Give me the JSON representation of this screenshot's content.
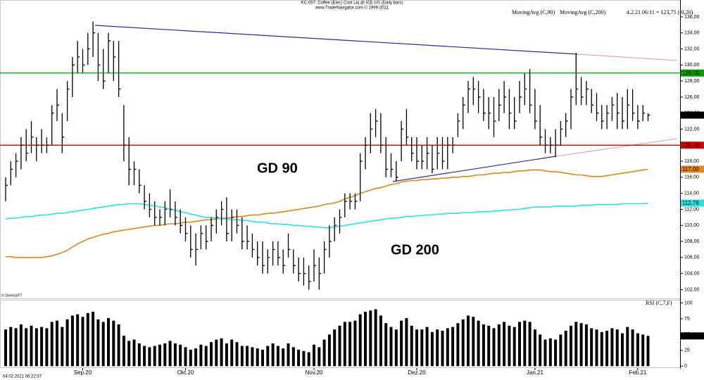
{
  "chart_data": [
    {
      "type": "ohlc",
      "title": "KC-057:  Coffee (Elec) Cont Liq @ ICE-US  (Daily bars)",
      "subtitle": "www.TradeNavigator.com © 1999-2021",
      "quote": "4.2.21 06:11 = 123,75 (-0,20)",
      "credit": "© GenesisFT",
      "timestamp": "04.02.2021 06:22:37",
      "color": "#000000",
      "categories": [
        null,
        null,
        null,
        null,
        null,
        null,
        null,
        null,
        null,
        null,
        null,
        null,
        null,
        null,
        null,
        "Sep.20",
        null,
        null,
        null,
        null,
        null,
        null,
        null,
        null,
        null,
        null,
        null,
        null,
        null,
        null,
        null,
        null,
        null,
        null,
        null,
        "Okt.20",
        null,
        null,
        null,
        null,
        null,
        null,
        null,
        null,
        null,
        null,
        null,
        null,
        null,
        null,
        null,
        null,
        null,
        null,
        null,
        null,
        null,
        null,
        null,
        null,
        "Nov.20",
        null,
        null,
        null,
        null,
        null,
        null,
        null,
        null,
        null,
        null,
        null,
        null,
        null,
        null,
        null,
        null,
        null,
        null,
        null,
        "Dez.20",
        null,
        null,
        null,
        null,
        null,
        null,
        null,
        null,
        null,
        null,
        null,
        null,
        null,
        null,
        null,
        null,
        null,
        null,
        null,
        null,
        null,
        null,
        "Jan.21",
        null,
        null,
        null,
        null,
        null,
        null,
        null,
        null,
        null,
        null,
        null,
        null,
        null,
        null,
        null,
        null,
        null,
        null,
        null,
        "Feb.21",
        null,
        null
      ],
      "high": [
        116,
        118,
        119,
        121,
        122,
        123,
        121,
        122,
        121,
        125,
        127,
        124,
        128,
        131,
        133,
        132,
        134,
        135.4,
        134,
        132,
        134,
        133,
        133,
        125,
        121,
        118,
        117,
        115,
        114,
        113,
        112,
        113,
        114.5,
        113,
        112,
        111,
        110,
        109,
        110,
        110,
        111,
        112,
        113,
        113.5,
        112,
        112,
        111,
        110,
        109,
        108,
        108,
        107,
        108,
        108,
        107,
        109,
        107,
        106,
        106,
        105,
        107,
        106,
        108,
        110,
        111,
        112,
        114,
        114,
        114,
        119,
        121,
        124,
        124.5,
        124,
        121,
        119,
        118,
        123,
        124.5,
        121,
        121,
        120,
        121,
        120,
        121,
        121,
        121,
        121,
        124,
        126,
        128,
        128.5,
        128,
        127,
        126,
        126,
        127,
        128,
        127,
        126,
        128,
        129,
        129.5,
        127,
        125,
        122,
        121,
        122,
        123,
        124,
        127,
        131.5,
        128.5,
        128,
        127,
        126.5,
        125,
        125,
        126,
        126.5,
        126,
        127,
        127,
        125,
        125,
        124
      ],
      "low": [
        113,
        115,
        116,
        117,
        118,
        119,
        118,
        119,
        119,
        120,
        123,
        119,
        123,
        126,
        129,
        129,
        130,
        131,
        128,
        127,
        129,
        128,
        126,
        118,
        115,
        115,
        114,
        112,
        111,
        110,
        110,
        110,
        111,
        110,
        109,
        108,
        106,
        105,
        107,
        107,
        108,
        109,
        110,
        108,
        108,
        109,
        107,
        107,
        106,
        105,
        104,
        104,
        105,
        105,
        104,
        106,
        104,
        103,
        102.5,
        102,
        103,
        102,
        104,
        106,
        108,
        109,
        111,
        112,
        112,
        113,
        117,
        119,
        121,
        119,
        116,
        116,
        115.5,
        118,
        120,
        118,
        117,
        117,
        117,
        116.5,
        117,
        117,
        117,
        119,
        121,
        122,
        124,
        125,
        124,
        123,
        122,
        121,
        123,
        124,
        122,
        122,
        124,
        125,
        124,
        122,
        120,
        119,
        119,
        118.5,
        120,
        121,
        122,
        125,
        125,
        125,
        124,
        123,
        122,
        122,
        123,
        122,
        122,
        122,
        123,
        122,
        123,
        123
      ],
      "close": [
        115,
        117,
        118,
        120,
        119,
        121,
        120,
        120,
        120,
        124,
        125,
        121,
        127,
        130,
        131,
        130,
        132,
        134,
        130,
        128,
        133,
        131,
        127,
        120,
        117,
        117,
        115,
        113,
        112,
        111,
        111,
        112,
        112,
        111,
        110,
        109,
        107,
        107,
        109,
        108,
        110,
        111,
        112,
        109,
        111,
        110,
        108,
        108,
        107,
        106,
        105,
        106,
        107,
        106,
        105,
        107,
        105,
        104,
        104,
        103,
        105,
        104,
        107,
        108,
        110,
        111,
        113,
        113,
        113,
        118,
        120,
        122,
        123,
        120,
        117,
        117,
        116,
        122,
        121,
        119,
        118,
        118,
        119,
        117,
        119,
        118,
        120,
        120,
        123,
        125,
        127,
        127,
        126,
        124,
        124,
        123,
        125,
        126,
        124,
        123,
        126,
        127,
        125,
        123,
        121,
        120,
        120,
        120,
        122,
        123,
        126,
        127,
        126,
        127,
        125,
        124,
        123,
        124,
        125,
        124,
        123,
        125,
        124,
        123,
        124,
        123.75
      ],
      "close_last_label": "123,75",
      "series": [
        {
          "name": "MovingAvg (C,90)",
          "color": "#e0861c",
          "last_label": "117,00",
          "values": [
            106.1,
            106.1,
            106.0,
            106.0,
            106.0,
            106.0,
            106.0,
            106.0,
            106.1,
            106.2,
            106.4,
            106.6,
            106.9,
            107.3,
            107.7,
            108.0,
            108.3,
            108.5,
            108.7,
            108.9,
            109.0,
            109.2,
            109.3,
            109.4,
            109.5,
            109.6,
            109.7,
            109.8,
            109.9,
            110.0,
            110.0,
            110.1,
            110.2,
            110.2,
            110.3,
            110.4,
            110.4,
            110.5,
            110.6,
            110.7,
            110.7,
            110.8,
            110.9,
            110.9,
            111.0,
            111.1,
            111.1,
            111.2,
            111.3,
            111.3,
            111.4,
            111.5,
            111.5,
            111.6,
            111.7,
            111.8,
            111.9,
            112.0,
            112.1,
            112.2,
            112.3,
            112.4,
            112.6,
            112.7,
            112.8,
            113.0,
            113.3,
            113.5,
            113.7,
            114.0,
            114.2,
            114.4,
            114.6,
            114.7,
            114.9,
            115.1,
            115.2,
            115.4,
            115.5,
            115.6,
            115.6,
            115.7,
            115.7,
            115.8,
            115.8,
            115.9,
            115.9,
            116.0,
            116.0,
            116.1,
            116.1,
            116.2,
            116.3,
            116.3,
            116.4,
            116.5,
            116.5,
            116.6,
            116.6,
            116.7,
            116.8,
            116.8,
            116.9,
            116.9,
            116.9,
            116.8,
            116.7,
            116.7,
            116.6,
            116.5,
            116.4,
            116.3,
            116.3,
            116.2,
            116.1,
            116.1,
            116.1,
            116.2,
            116.3,
            116.4,
            116.5,
            116.6,
            116.7,
            116.8,
            116.9,
            117.0
          ]
        },
        {
          "name": "MovingAvg (C,200)",
          "color": "#2ee0e0",
          "last_label": "112,78",
          "values": [
            110.8,
            110.9,
            110.9,
            111.0,
            111.1,
            111.1,
            111.2,
            111.3,
            111.3,
            111.4,
            111.5,
            111.5,
            111.6,
            111.7,
            111.8,
            111.9,
            112.0,
            112.1,
            112.2,
            112.3,
            112.4,
            112.5,
            112.6,
            112.6,
            112.7,
            112.7,
            112.7,
            112.6,
            112.5,
            112.4,
            112.3,
            112.2,
            112.0,
            111.9,
            111.7,
            111.6,
            111.4,
            111.3,
            111.1,
            111.0,
            111.0,
            110.9,
            110.8,
            110.8,
            110.7,
            110.7,
            110.6,
            110.6,
            110.5,
            110.4,
            110.4,
            110.3,
            110.2,
            110.2,
            110.1,
            110.1,
            110.0,
            110.0,
            109.9,
            109.9,
            109.8,
            109.8,
            109.7,
            109.7,
            109.8,
            109.9,
            110.0,
            110.1,
            110.2,
            110.3,
            110.4,
            110.5,
            110.6,
            110.7,
            110.8,
            110.9,
            110.9,
            111.0,
            111.1,
            111.1,
            111.2,
            111.2,
            111.3,
            111.3,
            111.4,
            111.4,
            111.5,
            111.5,
            111.5,
            111.6,
            111.6,
            111.6,
            111.7,
            111.7,
            111.7,
            111.8,
            111.8,
            111.9,
            111.9,
            112.0,
            112.0,
            112.1,
            112.2,
            112.3,
            112.3,
            112.3,
            112.3,
            112.4,
            112.4,
            112.4,
            112.4,
            112.4,
            112.5,
            112.5,
            112.5,
            112.6,
            112.6,
            112.6,
            112.6,
            112.6,
            112.7,
            112.7,
            112.7,
            112.7,
            112.7,
            112.78
          ]
        }
      ],
      "hlines": [
        {
          "value": 129,
          "label": "129,00",
          "color": "#00a000"
        },
        {
          "value": 120,
          "label": "120,00",
          "color": "#d40000"
        }
      ],
      "annotations": [
        {
          "text": "GD 90",
          "color": "#e8821e"
        },
        {
          "text": "GD 200",
          "color": "#22dede"
        }
      ],
      "ylim": [
        100.9,
        138.1
      ],
      "yticks": [
        {
          "value": 102,
          "label": "102,00"
        },
        {
          "value": 104,
          "label": "104,00"
        },
        {
          "value": 106,
          "label": "106,00"
        },
        {
          "value": 108,
          "label": "108,00"
        },
        {
          "value": 110,
          "label": "110,00"
        },
        {
          "value": 112,
          "label": "112,00"
        },
        {
          "value": 114,
          "label": "114,00"
        },
        {
          "value": 116,
          "label": "116,00"
        },
        {
          "value": 118,
          "label": "118,00"
        },
        {
          "value": 120,
          "label": "120,00"
        },
        {
          "value": 122,
          "label": "122,00"
        },
        {
          "value": 124,
          "label": "124,00"
        },
        {
          "value": 126,
          "label": "126,00"
        },
        {
          "value": 128,
          "label": "128,00"
        },
        {
          "value": 130,
          "label": "130,00"
        },
        {
          "value": 132,
          "label": "132,00"
        },
        {
          "value": 134,
          "label": "134,00"
        },
        {
          "value": 136,
          "label": "136,00"
        }
      ]
    },
    {
      "type": "bar",
      "title": "RSI (C,7,F)",
      "color": "#000000",
      "last_label": "47,79",
      "values": [
        58,
        62,
        60,
        66,
        60,
        64,
        60,
        62,
        60,
        70,
        72,
        62,
        74,
        80,
        82,
        78,
        84,
        86,
        74,
        70,
        76,
        72,
        66,
        48,
        40,
        42,
        36,
        32,
        30,
        32,
        34,
        36,
        40,
        36,
        34,
        30,
        26,
        28,
        34,
        32,
        38,
        42,
        44,
        36,
        42,
        38,
        32,
        32,
        30,
        28,
        26,
        32,
        36,
        32,
        28,
        36,
        30,
        26,
        24,
        22,
        34,
        30,
        42,
        50,
        58,
        64,
        70,
        70,
        72,
        82,
        86,
        88,
        90,
        80,
        68,
        62,
        58,
        72,
        76,
        64,
        58,
        58,
        62,
        54,
        58,
        56,
        60,
        62,
        68,
        74,
        80,
        78,
        72,
        66,
        64,
        60,
        66,
        70,
        64,
        62,
        70,
        72,
        70,
        58,
        50,
        42,
        44,
        42,
        50,
        56,
        64,
        70,
        68,
        66,
        60,
        58,
        54,
        56,
        60,
        58,
        52,
        62,
        58,
        52,
        50,
        47.79
      ],
      "ylim": [
        -3,
        105
      ],
      "yticks": [
        0,
        25,
        50,
        75,
        100
      ]
    }
  ]
}
